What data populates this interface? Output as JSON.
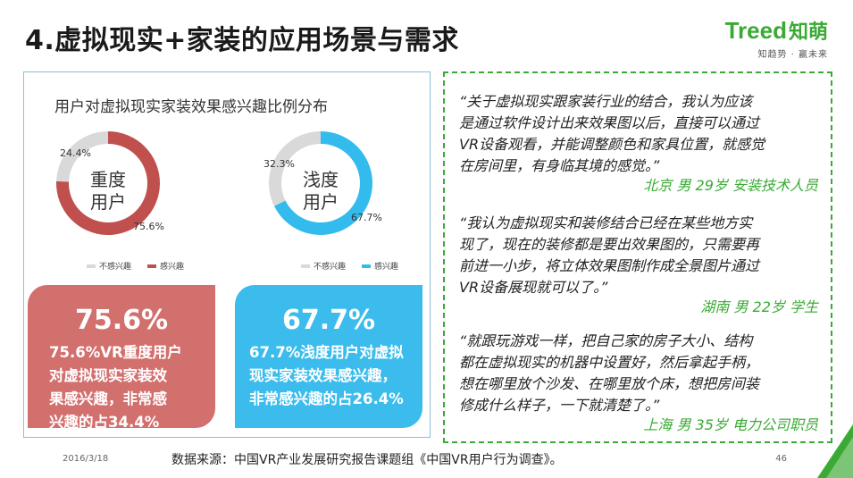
{
  "slide": {
    "title": "4.虚拟现实+家装的应用场景与需求",
    "logo": {
      "brand": "Treed",
      "brand_cn": "知萌",
      "tagline": "知趋势 · 赢未来"
    }
  },
  "chart_data": [
    {
      "type": "pie",
      "title": "用户对虚拟现实家装效果感兴趣比例分布",
      "center_label": [
        "重度",
        "用户"
      ],
      "labels": [
        "不感兴趣",
        "感兴趣"
      ],
      "values": [
        24.4,
        75.6
      ],
      "value_labels": [
        "24.4%",
        "75.6%"
      ],
      "colors": [
        "#d9d9d9",
        "#c0504d"
      ]
    },
    {
      "type": "pie",
      "center_label": [
        "浅度",
        "用户"
      ],
      "labels": [
        "不感兴趣",
        "感兴趣"
      ],
      "values": [
        32.3,
        67.7
      ],
      "value_labels": [
        "32.3%",
        "67.7%"
      ],
      "colors": [
        "#d9d9d9",
        "#33bbee"
      ]
    }
  ],
  "cards": [
    {
      "big": "75.6%",
      "lines": [
        "75.6%VR重度用户",
        "对虚拟现实家装效",
        "果感兴趣，非常感",
        "兴趣的占34.4%"
      ],
      "color": "#d2706e"
    },
    {
      "big": "67.7%",
      "lines": [
        "67.7%浅度用户对虚拟",
        "现实家装效果感兴趣，",
        "非常感兴趣的占26.4%"
      ],
      "color": "#3bbcec"
    }
  ],
  "quotes": [
    {
      "lines": [
        "“关于虚拟现实跟家装行业的结合，我认为应该",
        "是通过软件设计出来效果图以后，直接可以通过",
        "VR设备观看，并能调整颜色和家具位置，就感觉",
        "在房间里，有身临其境的感觉。”"
      ],
      "source": "北京  男 29岁 安装技术人员"
    },
    {
      "lines": [
        "“我认为虚拟现实和装修结合已经在某些地方实",
        "现了，现在的装修都是要出效果图的，只需要再",
        "前进一小步，将立体效果图制作成全景图片通过",
        "VR设备展现就可以了。”"
      ],
      "source": "湖南  男  22岁  学生"
    },
    {
      "lines": [
        "“就跟玩游戏一样，把自己家的房子大小、结构",
        "都在虚拟现实的机器中设置好，然后拿起手柄，",
        "想在哪里放个沙发、在哪里放个床，想把房间装",
        "修成什么样子，一下就清楚了。”"
      ],
      "source": "上海  男 35岁  电力公司职员"
    }
  ],
  "footer": {
    "date": "2016/3/18",
    "source": "数据来源：中国VR产业发展研究报告课题组《中国VR用户行为调查》。",
    "page": "46"
  }
}
